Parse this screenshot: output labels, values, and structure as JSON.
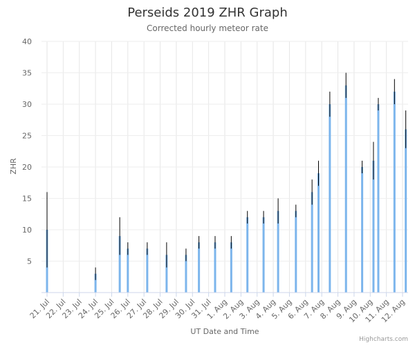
{
  "chart_data": {
    "type": "bar",
    "title": "Perseids 2019 ZHR Graph",
    "subtitle": "Corrected hourly meteor rate",
    "xlabel": "UT Date and Time",
    "ylabel": "ZHR",
    "ylim": [
      0,
      40
    ],
    "yticks": [
      5,
      10,
      15,
      20,
      25,
      30,
      35,
      40
    ],
    "grid": true,
    "bar_color": "#7cb5ec",
    "error_color": "#000000",
    "x_tick_labels": [
      "21. Jul",
      "22. Jul",
      "23. Jul",
      "24. Jul",
      "25. Jul",
      "26. Jul",
      "27. Jul",
      "28. Jul",
      "29. Jul",
      "30. Jul",
      "31. Jul",
      "1. Aug",
      "2. Aug",
      "3. Aug",
      "4. Aug",
      "5. Aug",
      "6. Aug",
      "7. Aug",
      "8. Aug",
      "9. Aug",
      "10. Aug",
      "11. Aug",
      "12. Aug"
    ],
    "points": [
      {
        "day": 21.0,
        "value": 10,
        "err_low": 4,
        "err_high": 16
      },
      {
        "day": 24.0,
        "value": 3,
        "err_low": 2,
        "err_high": 4
      },
      {
        "day": 25.5,
        "value": 9,
        "err_low": 6,
        "err_high": 12
      },
      {
        "day": 26.0,
        "value": 7,
        "err_low": 6,
        "err_high": 8
      },
      {
        "day": 27.2,
        "value": 7,
        "err_low": 6,
        "err_high": 8
      },
      {
        "day": 28.4,
        "value": 6,
        "err_low": 4,
        "err_high": 8
      },
      {
        "day": 29.6,
        "value": 6,
        "err_low": 5,
        "err_high": 7
      },
      {
        "day": 30.4,
        "value": 8,
        "err_low": 7,
        "err_high": 9
      },
      {
        "day": 31.4,
        "value": 8,
        "err_low": 7,
        "err_high": 9
      },
      {
        "day": 32.4,
        "value": 8,
        "err_low": 7,
        "err_high": 9
      },
      {
        "day": 33.4,
        "value": 12,
        "err_low": 11,
        "err_high": 13
      },
      {
        "day": 34.4,
        "value": 12,
        "err_low": 11,
        "err_high": 13
      },
      {
        "day": 35.3,
        "value": 13,
        "err_low": 11,
        "err_high": 15
      },
      {
        "day": 36.4,
        "value": 13,
        "err_low": 12,
        "err_high": 14
      },
      {
        "day": 37.4,
        "value": 16,
        "err_low": 14,
        "err_high": 18
      },
      {
        "day": 37.8,
        "value": 19,
        "err_low": 17,
        "err_high": 21
      },
      {
        "day": 38.5,
        "value": 30,
        "err_low": 28,
        "err_high": 32
      },
      {
        "day": 39.5,
        "value": 33,
        "err_low": 31,
        "err_high": 35
      },
      {
        "day": 40.5,
        "value": 20,
        "err_low": 19,
        "err_high": 21
      },
      {
        "day": 41.2,
        "value": 21,
        "err_low": 18,
        "err_high": 24
      },
      {
        "day": 41.5,
        "value": 30,
        "err_low": 29,
        "err_high": 31
      },
      {
        "day": 42.5,
        "value": 32,
        "err_low": 30,
        "err_high": 34
      },
      {
        "day": 43.2,
        "value": 26,
        "err_low": 23,
        "err_high": 29
      }
    ]
  },
  "credit": "Highcharts.com"
}
